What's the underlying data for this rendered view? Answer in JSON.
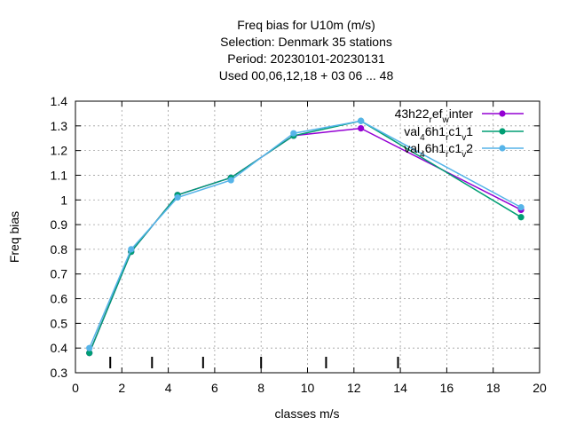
{
  "chart_data": {
    "type": "line",
    "title": [
      "Freq bias  for U10m (m/s)",
      "Selection: Denmark     35 stations",
      "Period: 20230101-20230131",
      "Used  00,06,12,18  + 03 06 ... 48"
    ],
    "xlabel": "classes m/s",
    "ylabel": "Freq bias",
    "xlim": [
      0,
      20
    ],
    "ylim": [
      0.3,
      1.4
    ],
    "xticks": [
      "0",
      "2",
      "4",
      "6",
      "8",
      "10",
      "12",
      "14",
      "16",
      "18",
      "20"
    ],
    "yticks": [
      "0.3",
      "0.4",
      "0.5",
      "0.6",
      "0.7",
      "0.8",
      "0.9",
      "1",
      "1.1",
      "1.2",
      "1.3",
      "1.4"
    ],
    "grid": true,
    "legend_position": "top-right",
    "class_boundaries": [
      1.5,
      3.3,
      5.5,
      8.0,
      10.8,
      13.9
    ],
    "series": [
      {
        "name": "43h22_ref_winter",
        "name_main": [
          "43h22",
          "ef",
          "inter"
        ],
        "name_sub": [
          "r",
          "w"
        ],
        "color": "#9400d3",
        "x": [
          0.6,
          2.4,
          4.4,
          6.7,
          9.4,
          12.3,
          19.2
        ],
        "y": [
          0.38,
          0.79,
          1.02,
          1.09,
          1.26,
          1.29,
          0.96
        ]
      },
      {
        "name": "val_46h1_rc1_v1",
        "name_main": [
          "val",
          "6h1",
          "c1",
          "1"
        ],
        "name_sub": [
          "4",
          "r",
          "v"
        ],
        "color": "#009e73",
        "x": [
          0.6,
          2.4,
          4.4,
          6.7,
          9.4,
          12.3,
          19.2
        ],
        "y": [
          0.38,
          0.79,
          1.02,
          1.09,
          1.26,
          1.32,
          0.93
        ]
      },
      {
        "name": "val_46h1_rc1_v2",
        "name_main": [
          "val",
          "6h1",
          "c1",
          "2"
        ],
        "name_sub": [
          "4",
          "r",
          "v"
        ],
        "color": "#56b4e9",
        "x": [
          0.6,
          2.4,
          4.4,
          6.7,
          9.4,
          12.3,
          19.2
        ],
        "y": [
          0.4,
          0.8,
          1.01,
          1.08,
          1.27,
          1.32,
          0.97
        ]
      }
    ]
  }
}
